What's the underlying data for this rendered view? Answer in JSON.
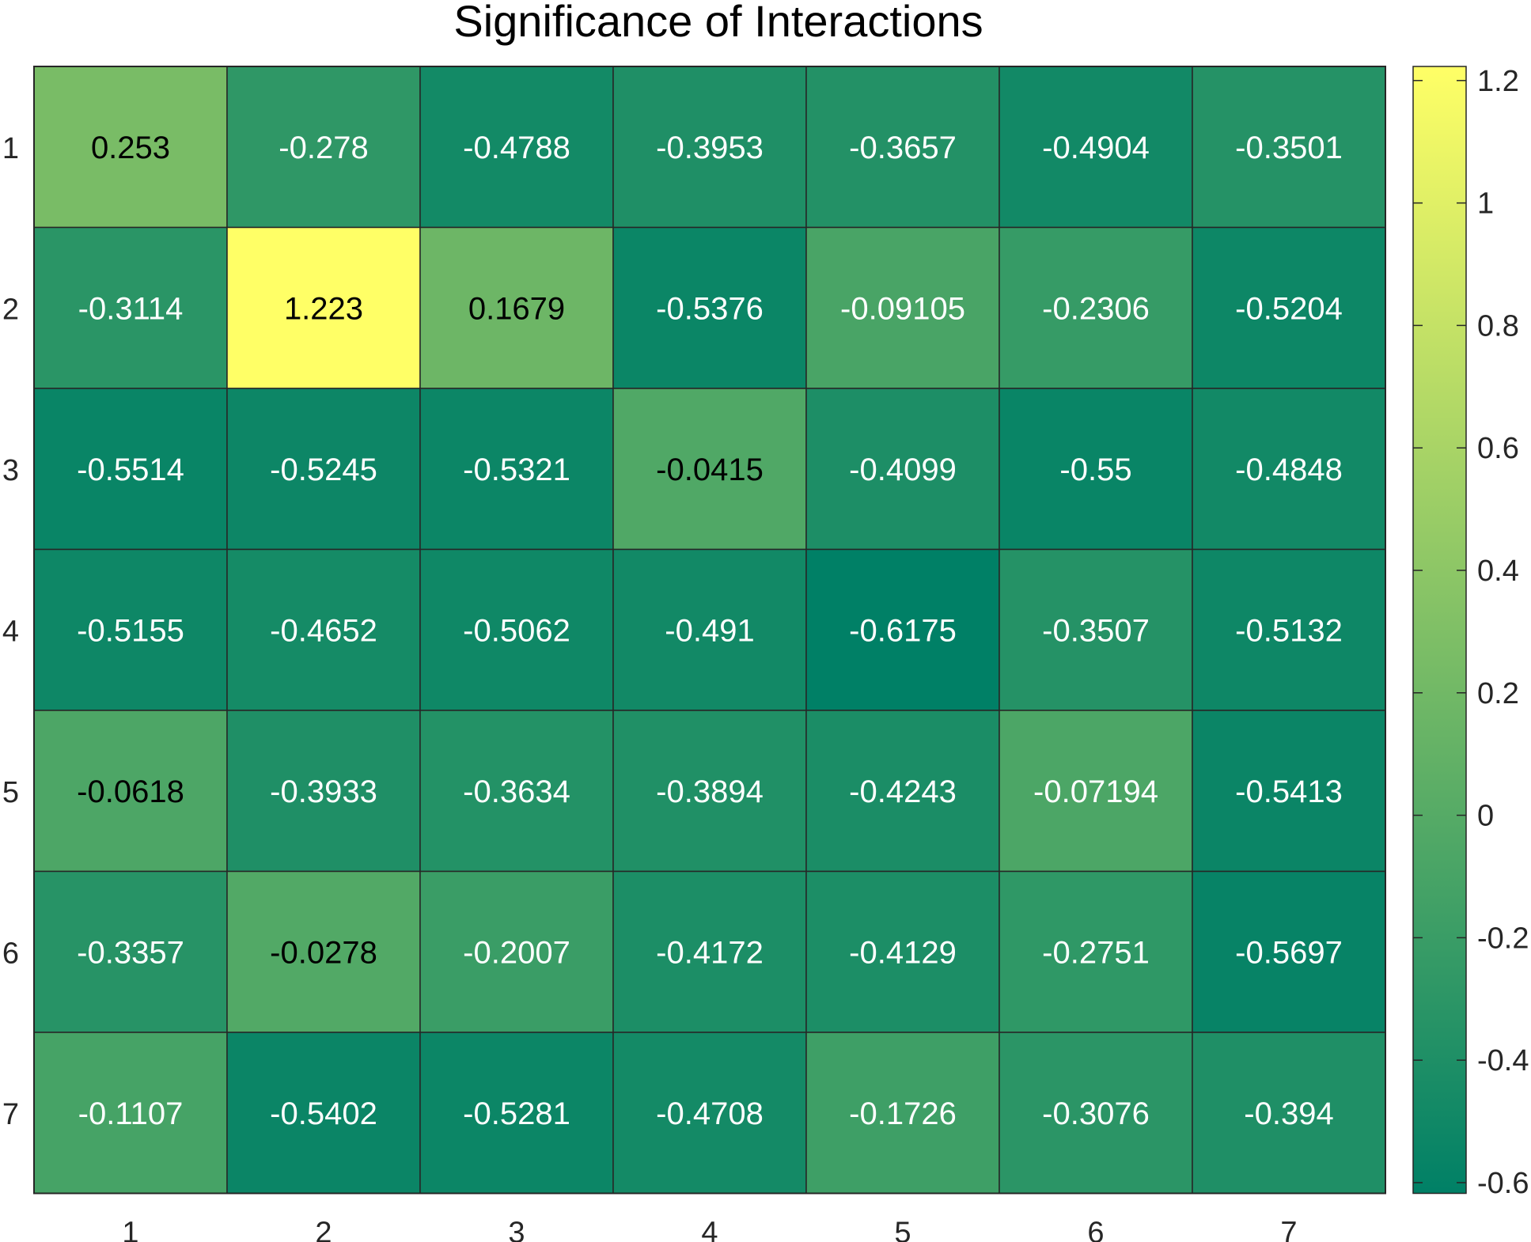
{
  "chart_data": {
    "type": "heatmap",
    "title": "Significance of Interactions",
    "xlabel": "",
    "ylabel": "",
    "x_categories": [
      "1",
      "2",
      "3",
      "4",
      "5",
      "6",
      "7"
    ],
    "y_categories": [
      "1",
      "2",
      "3",
      "4",
      "5",
      "6",
      "7"
    ],
    "values": [
      [
        "0.253",
        "-0.278",
        "-0.4788",
        "-0.3953",
        "-0.3657",
        "-0.4904",
        "-0.3501"
      ],
      [
        "-0.3114",
        "1.223",
        "0.1679",
        "-0.5376",
        "-0.09105",
        "-0.2306",
        "-0.5204"
      ],
      [
        "-0.5514",
        "-0.5245",
        "-0.5321",
        "-0.0415",
        "-0.4099",
        "-0.55",
        "-0.4848"
      ],
      [
        "-0.5155",
        "-0.4652",
        "-0.5062",
        "-0.491",
        "-0.6175",
        "-0.3507",
        "-0.5132"
      ],
      [
        "-0.0618",
        "-0.3933",
        "-0.3634",
        "-0.3894",
        "-0.4243",
        "-0.07194",
        "-0.5413"
      ],
      [
        "-0.3357",
        "-0.0278",
        "-0.2007",
        "-0.4172",
        "-0.4129",
        "-0.2751",
        "-0.5697"
      ],
      [
        "-0.1107",
        "-0.5402",
        "-0.5281",
        "-0.4708",
        "-0.1726",
        "-0.3076",
        "-0.394"
      ]
    ],
    "colorbar": {
      "range": [
        -0.6175,
        1.223
      ],
      "ticks": [
        "-0.6",
        "-0.4",
        "-0.2",
        "0",
        "0.2",
        "0.4",
        "0.6",
        "0.8",
        "1",
        "1.2"
      ],
      "colormap": "summer",
      "color_low": "#008066",
      "color_high": "#ffff66"
    },
    "grid": true,
    "cell_edge_color": "#262626",
    "text_color_dark": "#000000",
    "text_color_light": "#ffffff"
  }
}
